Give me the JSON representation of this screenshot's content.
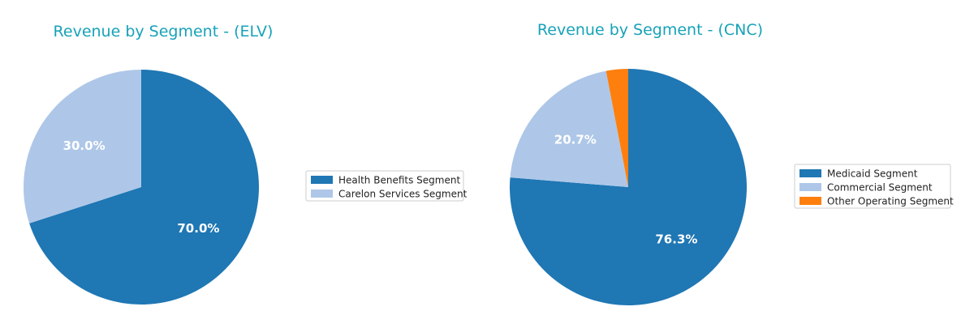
{
  "chart_data": [
    {
      "type": "pie",
      "title": "Revenue by Segment - (ELV)",
      "categories": [
        "Health Benefits Segment",
        "Carelon Services Segment"
      ],
      "values": [
        70.0,
        30.0
      ],
      "value_labels": [
        "70.0%",
        "30.0%"
      ],
      "colors": [
        "#1f77b4",
        "#aec7e8"
      ],
      "legend": "right",
      "start_angle": 90,
      "direction": "clockwise"
    },
    {
      "type": "pie",
      "title": "Revenue by Segment - (CNC)",
      "categories": [
        "Medicaid Segment",
        "Commercial Segment",
        "Other Operating Segment"
      ],
      "values": [
        76.3,
        20.7,
        3.0
      ],
      "value_labels": [
        "76.3%",
        "20.7%",
        ""
      ],
      "colors": [
        "#1f77b4",
        "#aec7e8",
        "#ff7f0e"
      ],
      "legend": "right",
      "start_angle": 90,
      "direction": "clockwise"
    }
  ]
}
